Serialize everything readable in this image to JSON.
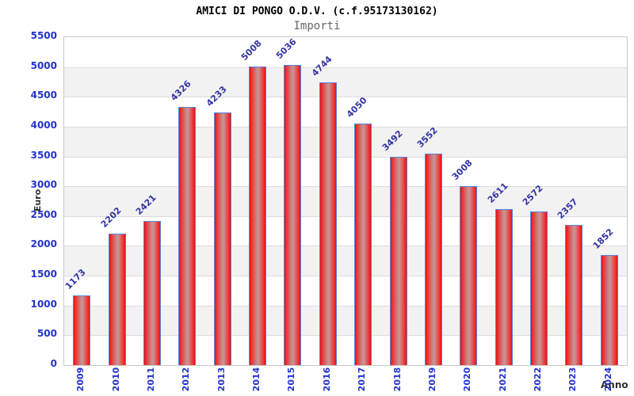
{
  "title": "AMICI DI PONGO O.D.V. (c.f.95173130162)",
  "subtitle": "Importi",
  "chart_data": {
    "type": "bar",
    "title": "AMICI DI PONGO O.D.V. (c.f.95173130162)",
    "subtitle": "Importi",
    "xlabel": "Anno",
    "ylabel": "Euro",
    "categories": [
      "2009",
      "2010",
      "2011",
      "2012",
      "2013",
      "2014",
      "2015",
      "2016",
      "2017",
      "2018",
      "2019",
      "2020",
      "2021",
      "2022",
      "2023",
      "2024"
    ],
    "values": [
      1173,
      2202,
      2421,
      4326,
      4233,
      5008,
      5036,
      4744,
      4050,
      3492,
      3552,
      3008,
      2611,
      2572,
      2357,
      1852
    ],
    "ylim": [
      0,
      5500
    ],
    "ytick_step": 500,
    "yticks": [
      5500,
      5000,
      4500,
      4000,
      3500,
      3000,
      2500,
      2000,
      1500,
      1000,
      500,
      0
    ],
    "grid": "alternating horizontal bands, gridline every 500",
    "legend": "none",
    "colors": {
      "bar_edge_red": "#e81010",
      "bar_center": "#c68c8c",
      "bar_border": "#5585e0",
      "tick_label_blue": "#2233cc",
      "value_label_navy": "#3434a4",
      "band_gray": "#f2f2f2",
      "gridline": "#dcdcdc",
      "plot_border": "#c9c9c9",
      "title_color": "#000000",
      "subtitle_color": "#666666",
      "axis_title_color": "#303030"
    }
  }
}
